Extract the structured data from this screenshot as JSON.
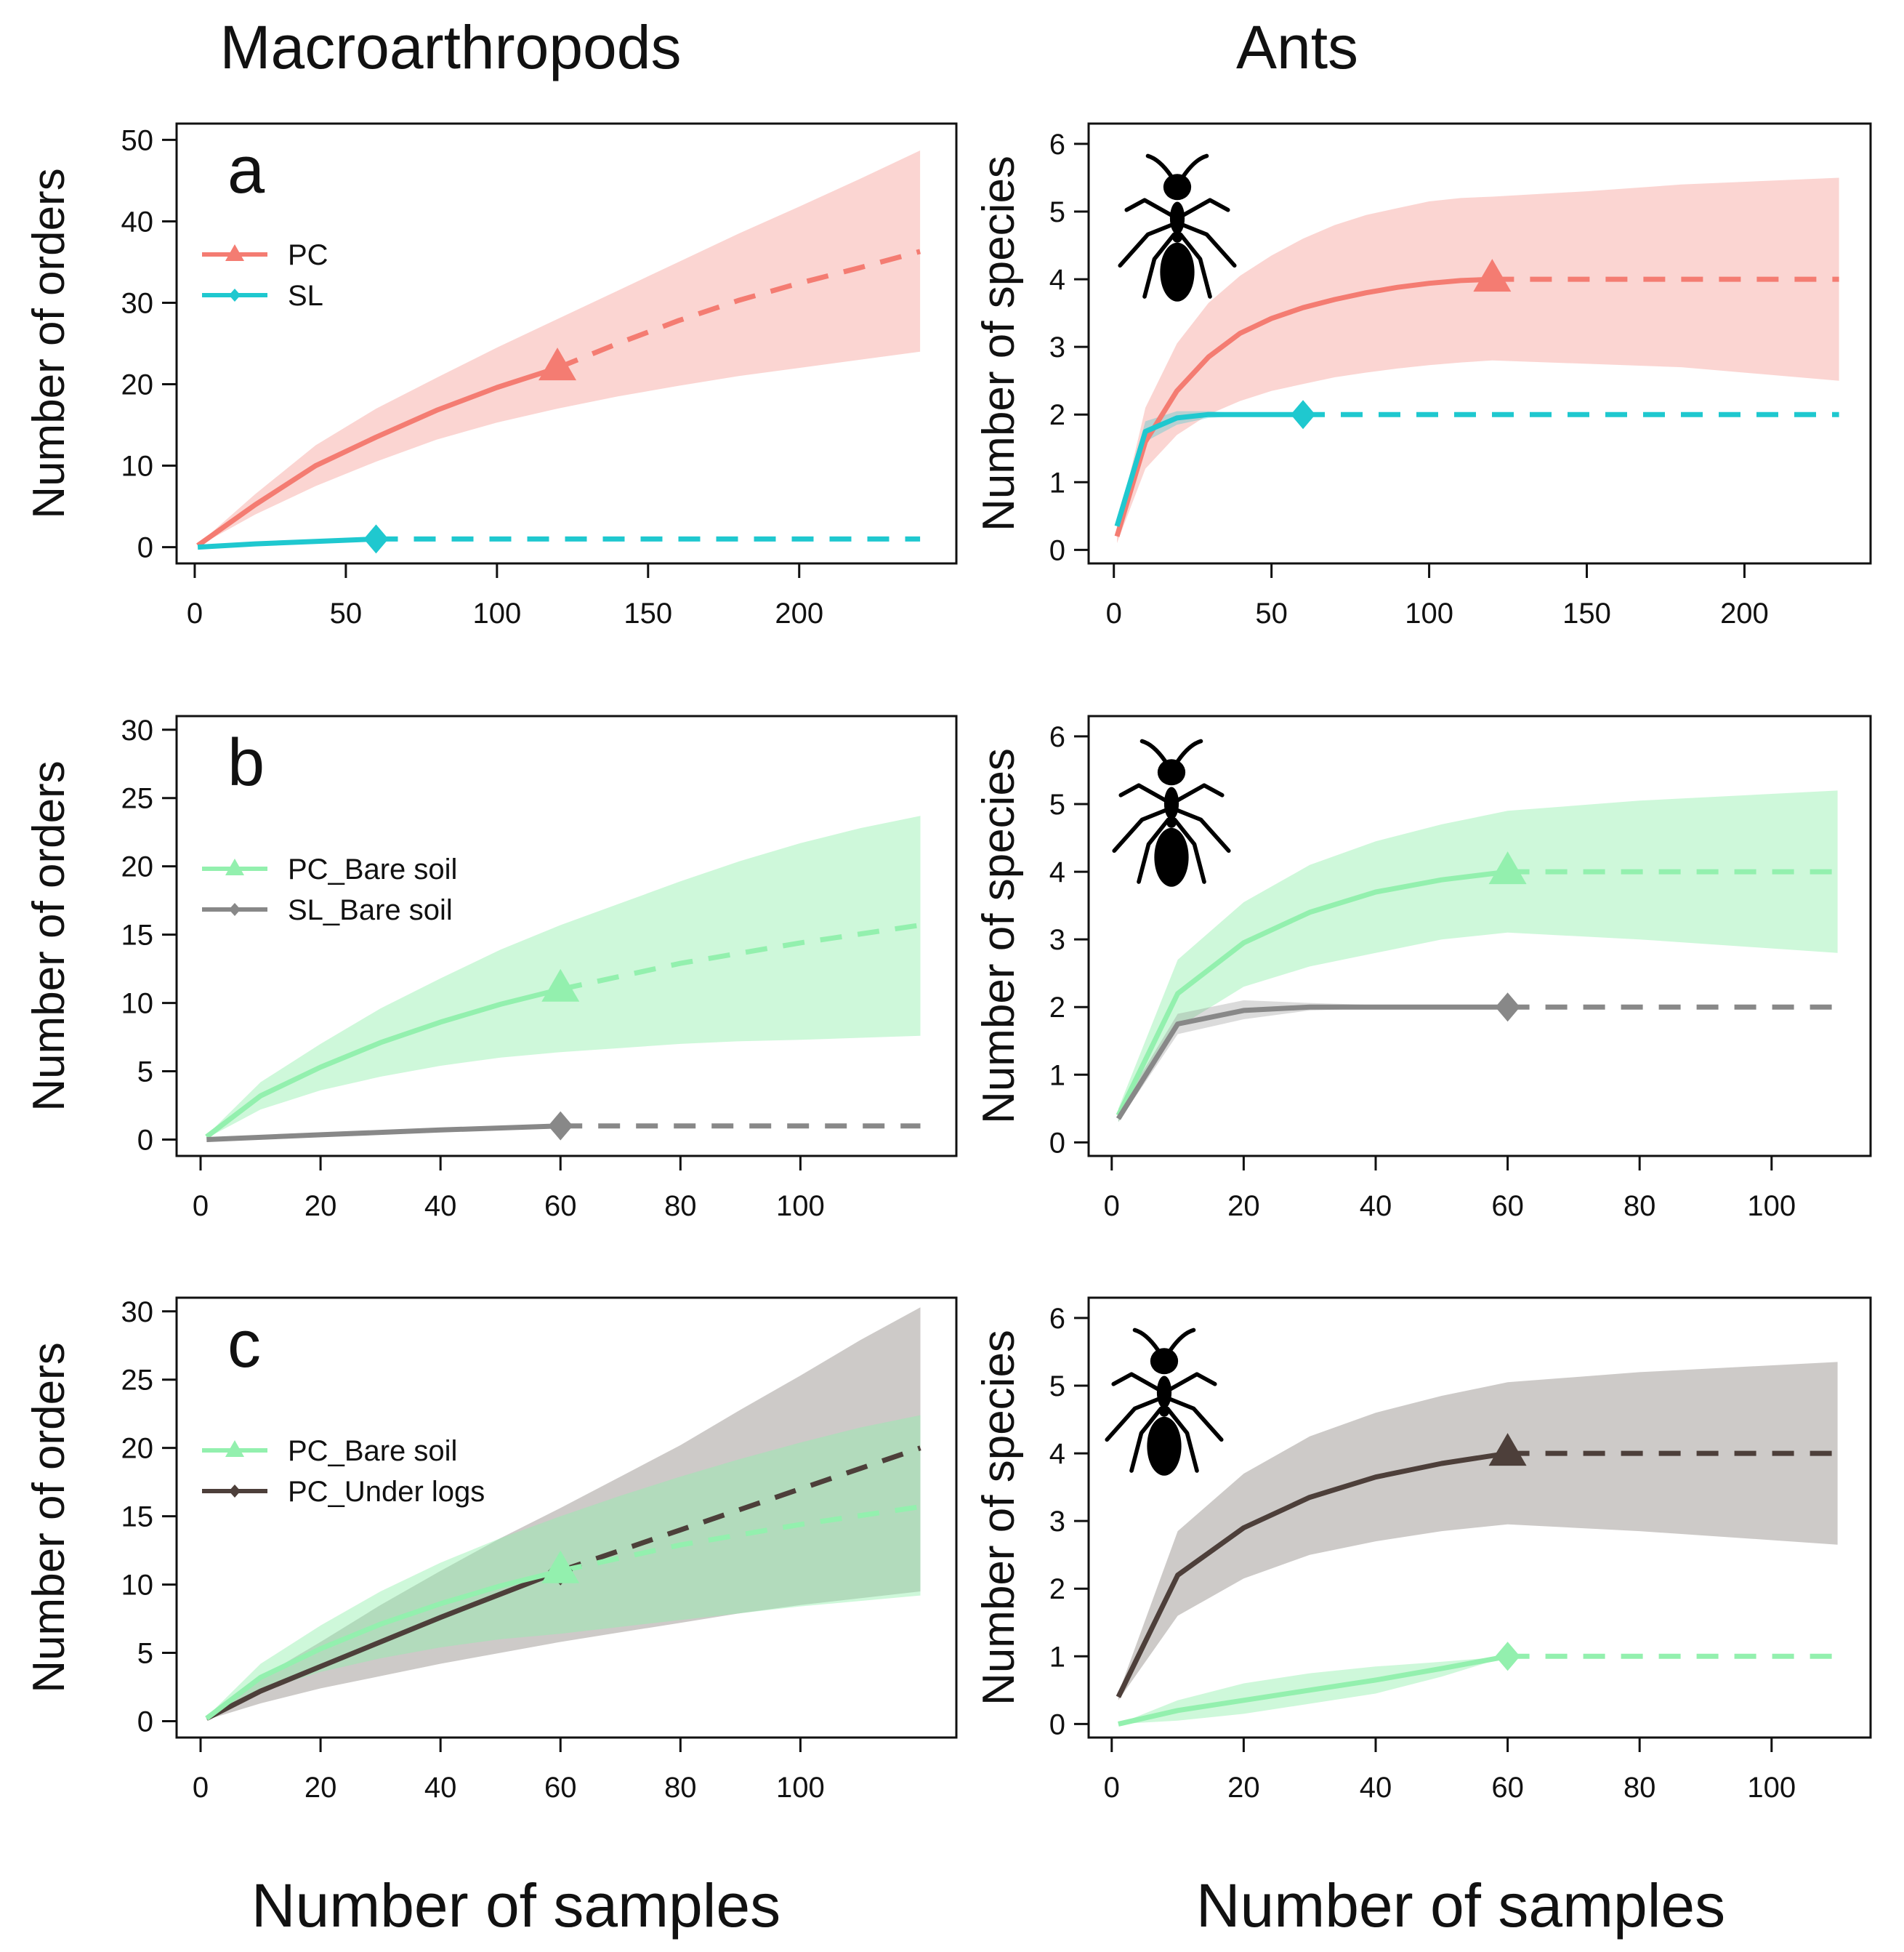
{
  "column_titles": {
    "left": "Macroarthropods",
    "right": "Ants"
  },
  "bottom_titles": {
    "left": "Number of samples",
    "right": "Number of samples"
  },
  "colors": {
    "PC": "#f47c72",
    "SL": "#1fc8cf",
    "PC_Bare soil": "#93f0ae",
    "PC_Under logs": "#4d3f3a"
  },
  "icon": "ant-silhouette-icon",
  "chart_data": [
    {
      "id": "a-macro",
      "type": "line",
      "panel_letter": "a",
      "title": "",
      "xlabel": "",
      "ylabel": "Number of orders",
      "xlim": [
        -6,
        252
      ],
      "ylim": [
        -2,
        52
      ],
      "xticks": [
        0,
        50,
        100,
        150,
        200
      ],
      "yticks": [
        0,
        10,
        20,
        30,
        40,
        50
      ],
      "legend": [
        "PC",
        "SL"
      ],
      "legend_position": "top-left",
      "series": [
        {
          "name": "PC",
          "marker": "triangle",
          "x_obs": 120,
          "band_alpha": 0.32,
          "interp_x": [
            1,
            20,
            40,
            60,
            80,
            100,
            120
          ],
          "interp_y": [
            0.2,
            5.2,
            10,
            13.5,
            16.8,
            19.6,
            22
          ],
          "extrap_x": [
            120,
            140,
            160,
            180,
            200,
            220,
            240
          ],
          "extrap_y": [
            22,
            25,
            27.8,
            30.3,
            32.4,
            34.3,
            36.3
          ],
          "band_x": [
            1,
            20,
            40,
            60,
            80,
            100,
            120,
            140,
            160,
            180,
            200,
            220,
            240
          ],
          "band_lo": [
            0.1,
            4,
            7.5,
            10.5,
            13.2,
            15.3,
            17,
            18.5,
            19.8,
            21,
            22,
            23,
            24
          ],
          "band_hi": [
            0.3,
            6.5,
            12.5,
            17,
            20.8,
            24.5,
            28,
            31.5,
            35,
            38.5,
            41.8,
            45.2,
            48.7
          ]
        },
        {
          "name": "SL",
          "marker": "diamond",
          "x_obs": 60,
          "band_alpha": 0.3,
          "interp_x": [
            1,
            20,
            40,
            60
          ],
          "interp_y": [
            0,
            0.4,
            0.7,
            1
          ],
          "extrap_x": [
            60,
            240
          ],
          "extrap_y": [
            1,
            1
          ],
          "band_x": [
            1,
            60,
            240
          ],
          "band_lo": [
            0,
            1,
            1
          ],
          "band_hi": [
            0,
            1,
            1
          ]
        }
      ]
    },
    {
      "id": "a-ants",
      "type": "line",
      "panel_letter": "",
      "title": "",
      "xlabel": "",
      "ylabel": "Number of species",
      "xlim": [
        -8,
        240
      ],
      "ylim": [
        -0.2,
        6.3
      ],
      "xticks": [
        0,
        50,
        100,
        150,
        200
      ],
      "yticks": [
        0,
        1,
        2,
        3,
        4,
        5,
        6
      ],
      "legend": [],
      "legend_position": "",
      "series": [
        {
          "name": "PC",
          "marker": "triangle",
          "x_obs": 120,
          "band_alpha": 0.32,
          "interp_x": [
            1,
            10,
            20,
            30,
            40,
            50,
            60,
            70,
            80,
            90,
            100,
            110,
            120
          ],
          "interp_y": [
            0.2,
            1.6,
            2.35,
            2.85,
            3.2,
            3.42,
            3.58,
            3.7,
            3.8,
            3.88,
            3.94,
            3.98,
            4
          ],
          "extrap_x": [
            120,
            230
          ],
          "extrap_y": [
            4,
            4
          ],
          "band_x": [
            1,
            10,
            20,
            30,
            40,
            50,
            60,
            70,
            80,
            90,
            100,
            110,
            120,
            150,
            180,
            230
          ],
          "band_lo": [
            0.1,
            1.2,
            1.7,
            2,
            2.2,
            2.35,
            2.45,
            2.55,
            2.62,
            2.68,
            2.73,
            2.77,
            2.8,
            2.75,
            2.7,
            2.5
          ],
          "band_hi": [
            0.3,
            2.1,
            3.05,
            3.65,
            4.05,
            4.35,
            4.6,
            4.8,
            4.95,
            5.05,
            5.15,
            5.2,
            5.22,
            5.3,
            5.4,
            5.5
          ]
        },
        {
          "name": "SL",
          "marker": "diamond",
          "x_obs": 60,
          "band_alpha": 0.3,
          "interp_x": [
            1,
            10,
            20,
            30,
            40,
            50,
            60
          ],
          "interp_y": [
            0.35,
            1.75,
            1.95,
            2,
            2,
            2,
            2
          ],
          "extrap_x": [
            60,
            230
          ],
          "extrap_y": [
            2,
            2
          ],
          "band_x": [
            1,
            10,
            20,
            30,
            40,
            50,
            60
          ],
          "band_lo": [
            0.3,
            1.6,
            1.85,
            1.95,
            1.98,
            2,
            2
          ],
          "band_hi": [
            0.4,
            1.9,
            2.05,
            2.05,
            2.02,
            2,
            2
          ]
        }
      ]
    },
    {
      "id": "b-macro",
      "type": "line",
      "panel_letter": "b",
      "title": "",
      "xlabel": "",
      "ylabel": "Number of orders",
      "xlim": [
        -4,
        126
      ],
      "ylim": [
        -1.2,
        31
      ],
      "xticks": [
        0,
        20,
        40,
        60,
        80,
        100
      ],
      "yticks": [
        0,
        5,
        10,
        15,
        20,
        25,
        30
      ],
      "legend": [
        "PC_Bare soil",
        "SL_Bare soil"
      ],
      "legend_position": "mid-left",
      "series": [
        {
          "name": "PC_Bare soil",
          "marker": "triangle",
          "x_obs": 60,
          "band_alpha": 0.45,
          "interp_x": [
            1,
            10,
            20,
            30,
            40,
            50,
            60
          ],
          "interp_y": [
            0.2,
            3.2,
            5.3,
            7.1,
            8.6,
            9.9,
            11
          ],
          "extrap_x": [
            60,
            80,
            100,
            120
          ],
          "extrap_y": [
            11,
            12.9,
            14.4,
            15.7
          ],
          "band_x": [
            1,
            10,
            20,
            30,
            40,
            50,
            60,
            70,
            80,
            90,
            100,
            110,
            120
          ],
          "band_lo": [
            0.1,
            2.2,
            3.6,
            4.6,
            5.4,
            6,
            6.4,
            6.7,
            7,
            7.2,
            7.3,
            7.45,
            7.6
          ],
          "band_hi": [
            0.3,
            4.2,
            7,
            9.6,
            11.8,
            13.9,
            15.7,
            17.3,
            18.9,
            20.4,
            21.7,
            22.8,
            23.7
          ]
        },
        {
          "name": "SL_Bare soil",
          "marker": "diamond",
          "x_obs": 60,
          "band_alpha": 0.3,
          "interp_x": [
            1,
            20,
            40,
            60
          ],
          "interp_y": [
            0,
            0.35,
            0.7,
            1
          ],
          "extrap_x": [
            60,
            120
          ],
          "extrap_y": [
            1,
            1
          ],
          "band_x": [
            1,
            60,
            120
          ],
          "band_lo": [
            0,
            1,
            1
          ],
          "band_hi": [
            0,
            1,
            1
          ]
        }
      ]
    },
    {
      "id": "b-ants",
      "type": "line",
      "panel_letter": "",
      "title": "",
      "xlabel": "",
      "ylabel": "Number of species",
      "xlim": [
        -3.5,
        115
      ],
      "ylim": [
        -0.2,
        6.3
      ],
      "xticks": [
        0,
        20,
        40,
        60,
        80,
        100
      ],
      "yticks": [
        0,
        1,
        2,
        3,
        4,
        5,
        6
      ],
      "legend": [],
      "legend_position": "",
      "series": [
        {
          "name": "PC_Bare soil",
          "marker": "triangle",
          "x_obs": 60,
          "band_alpha": 0.45,
          "interp_x": [
            1,
            10,
            20,
            30,
            40,
            50,
            60
          ],
          "interp_y": [
            0.4,
            2.2,
            2.95,
            3.4,
            3.7,
            3.88,
            4
          ],
          "extrap_x": [
            60,
            110
          ],
          "extrap_y": [
            4,
            4
          ],
          "band_x": [
            1,
            10,
            20,
            30,
            40,
            50,
            60,
            80,
            110
          ],
          "band_lo": [
            0.3,
            1.7,
            2.3,
            2.6,
            2.8,
            3,
            3.1,
            3,
            2.8
          ],
          "band_hi": [
            0.5,
            2.7,
            3.55,
            4.1,
            4.45,
            4.7,
            4.9,
            5.05,
            5.2
          ]
        },
        {
          "name": "SL_Bare soil",
          "marker": "diamond",
          "x_obs": 60,
          "band_alpha": 0.3,
          "interp_x": [
            1,
            10,
            20,
            30,
            40,
            50,
            60
          ],
          "interp_y": [
            0.35,
            1.75,
            1.95,
            2,
            2,
            2,
            2
          ],
          "extrap_x": [
            60,
            110
          ],
          "extrap_y": [
            2,
            2
          ],
          "band_x": [
            1,
            10,
            20,
            30,
            40,
            50,
            60
          ],
          "band_lo": [
            0.3,
            1.6,
            1.82,
            1.95,
            1.98,
            2,
            2
          ],
          "band_hi": [
            0.45,
            1.9,
            2.1,
            2.06,
            2.03,
            2,
            2
          ]
        }
      ]
    },
    {
      "id": "c-macro",
      "type": "line",
      "panel_letter": "c",
      "title": "",
      "xlabel": "",
      "ylabel": "Number of orders",
      "xlim": [
        -4,
        126
      ],
      "ylim": [
        -1.2,
        31
      ],
      "xticks": [
        0,
        20,
        40,
        60,
        80,
        100
      ],
      "yticks": [
        0,
        5,
        10,
        15,
        20,
        25,
        30
      ],
      "legend": [
        "PC_Bare soil",
        "PC_Under logs"
      ],
      "legend_position": "mid-left",
      "series": [
        {
          "name": "PC_Under logs",
          "marker": "diamond",
          "x_obs": 60,
          "band_alpha": 0.28,
          "interp_x": [
            1,
            10,
            20,
            30,
            40,
            50,
            60
          ],
          "interp_y": [
            0.2,
            2.2,
            4,
            5.8,
            7.6,
            9.3,
            11
          ],
          "extrap_x": [
            60,
            80,
            100,
            120
          ],
          "extrap_y": [
            11,
            14,
            17,
            20
          ],
          "band_x": [
            1,
            10,
            20,
            30,
            40,
            50,
            60,
            70,
            80,
            90,
            100,
            110,
            120
          ],
          "band_lo": [
            0.1,
            1.3,
            2.4,
            3.3,
            4.2,
            5,
            5.8,
            6.5,
            7.2,
            7.9,
            8.5,
            9,
            9.5
          ],
          "band_hi": [
            0.3,
            3.2,
            5.8,
            8.5,
            11,
            13.4,
            15.6,
            17.9,
            20.2,
            22.8,
            25.3,
            27.9,
            30.3
          ]
        },
        {
          "name": "PC_Bare soil",
          "marker": "triangle",
          "x_obs": 60,
          "band_alpha": 0.45,
          "interp_x": [
            1,
            10,
            20,
            30,
            40,
            50,
            60
          ],
          "interp_y": [
            0.2,
            3.2,
            5.3,
            7.1,
            8.6,
            9.9,
            11
          ],
          "extrap_x": [
            60,
            80,
            100,
            120
          ],
          "extrap_y": [
            11,
            12.9,
            14.4,
            15.7
          ],
          "band_x": [
            1,
            10,
            20,
            30,
            40,
            50,
            60,
            70,
            80,
            90,
            100,
            110,
            120
          ],
          "band_lo": [
            0.1,
            2.2,
            3.6,
            4.6,
            5.4,
            6,
            6.4,
            6.9,
            7.4,
            7.9,
            8.4,
            8.8,
            9.2
          ],
          "band_hi": [
            0.3,
            4.2,
            7,
            9.5,
            11.6,
            13.4,
            15,
            16.5,
            17.9,
            19.2,
            20.4,
            21.5,
            22.4
          ]
        }
      ]
    },
    {
      "id": "c-ants",
      "type": "line",
      "panel_letter": "",
      "title": "",
      "xlabel": "",
      "ylabel": "Number of species",
      "xlim": [
        -3.5,
        115
      ],
      "ylim": [
        -0.2,
        6.3
      ],
      "xticks": [
        0,
        20,
        40,
        60,
        80,
        100
      ],
      "yticks": [
        0,
        1,
        2,
        3,
        4,
        5,
        6
      ],
      "legend": [],
      "legend_position": "",
      "series": [
        {
          "name": "PC_Under logs",
          "marker": "triangle",
          "x_obs": 60,
          "band_alpha": 0.28,
          "interp_x": [
            1,
            10,
            20,
            30,
            40,
            50,
            60
          ],
          "interp_y": [
            0.4,
            2.2,
            2.9,
            3.35,
            3.65,
            3.85,
            4
          ],
          "extrap_x": [
            60,
            110
          ],
          "extrap_y": [
            4,
            4
          ],
          "band_x": [
            1,
            10,
            20,
            30,
            40,
            50,
            60,
            80,
            110
          ],
          "band_lo": [
            0.35,
            1.6,
            2.15,
            2.5,
            2.7,
            2.85,
            2.95,
            2.85,
            2.65
          ],
          "band_hi": [
            0.45,
            2.85,
            3.7,
            4.25,
            4.6,
            4.85,
            5.05,
            5.2,
            5.35
          ]
        },
        {
          "name": "PC_Bare soil",
          "marker": "diamond",
          "x_obs": 60,
          "band_alpha": 0.45,
          "interp_x": [
            1,
            10,
            20,
            30,
            40,
            50,
            60
          ],
          "interp_y": [
            0,
            0.2,
            0.35,
            0.5,
            0.65,
            0.82,
            1
          ],
          "extrap_x": [
            60,
            110
          ],
          "extrap_y": [
            1,
            1
          ],
          "band_x": [
            1,
            10,
            20,
            30,
            40,
            50,
            60
          ],
          "band_lo": [
            0,
            0.05,
            0.15,
            0.3,
            0.45,
            0.7,
            1
          ],
          "band_hi": [
            0,
            0.35,
            0.6,
            0.75,
            0.85,
            0.92,
            1
          ]
        }
      ]
    }
  ]
}
